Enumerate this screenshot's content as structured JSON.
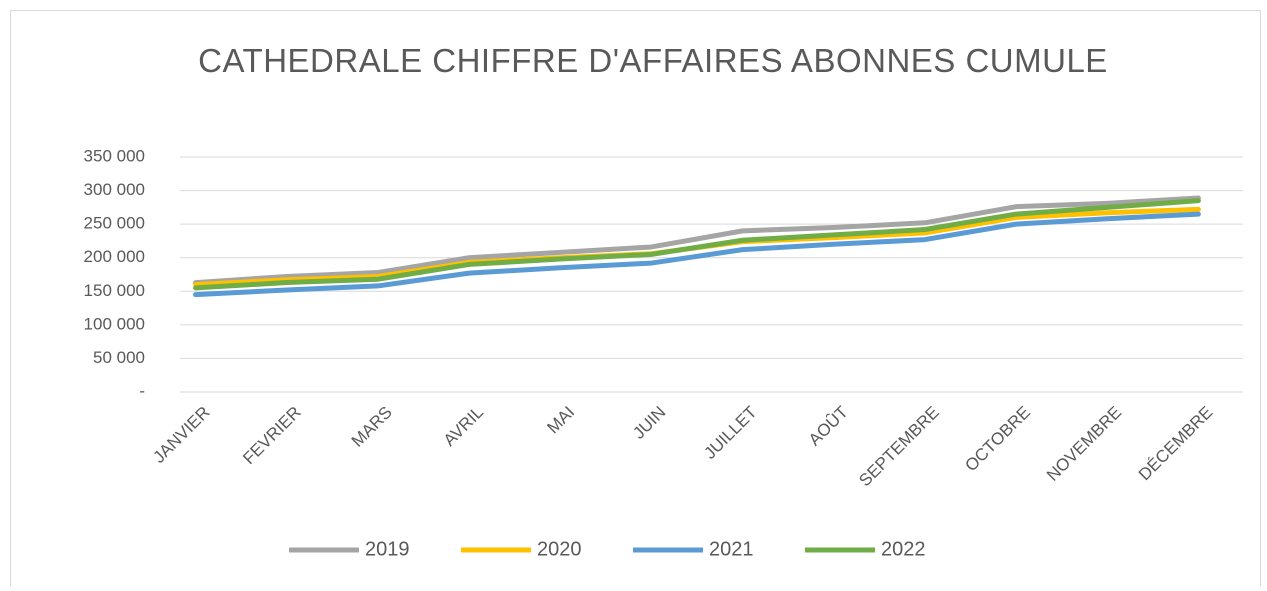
{
  "chart_data": {
    "type": "line",
    "title": "CATHEDRALE CHIFFRE D'AFFAIRES ABONNES CUMULE",
    "categories": [
      "JANVIER",
      "FEVRIER",
      "MARS",
      "AVRIL",
      "MAI",
      "JUIN",
      "JUILLET",
      "AOÛT",
      "SEPTEMBRE",
      "OCTOBRE",
      "NOVEMBRE",
      "DÉCEMBRE"
    ],
    "series": [
      {
        "name": "2019",
        "color": "#a5a5a5",
        "values": [
          163000,
          172000,
          178000,
          200000,
          208000,
          216000,
          240000,
          245000,
          252000,
          276000,
          281000,
          289000
        ]
      },
      {
        "name": "2020",
        "color": "#ffc000",
        "values": [
          160000,
          167000,
          172000,
          193000,
          200000,
          206000,
          224000,
          230000,
          237000,
          260000,
          267000,
          272000
        ]
      },
      {
        "name": "2021",
        "color": "#5b9bd5",
        "values": [
          145000,
          152000,
          158000,
          177000,
          185000,
          192000,
          212000,
          220000,
          227000,
          250000,
          258000,
          265000
        ]
      },
      {
        "name": "2022",
        "color": "#70ad47",
        "values": [
          155000,
          163000,
          168000,
          190000,
          198000,
          205000,
          226000,
          234000,
          242000,
          265000,
          275000,
          285000
        ]
      }
    ],
    "ylim": [
      0,
      350000
    ],
    "yticks": [
      {
        "value": 0,
        "label": "-"
      },
      {
        "value": 50000,
        "label": "50 000"
      },
      {
        "value": 100000,
        "label": "100 000"
      },
      {
        "value": 150000,
        "label": "150 000"
      },
      {
        "value": 200000,
        "label": "200 000"
      },
      {
        "value": 250000,
        "label": "250 000"
      },
      {
        "value": 300000,
        "label": "300 000"
      },
      {
        "value": 350000,
        "label": "350 000"
      }
    ],
    "grid": true,
    "legend": "bottom"
  }
}
